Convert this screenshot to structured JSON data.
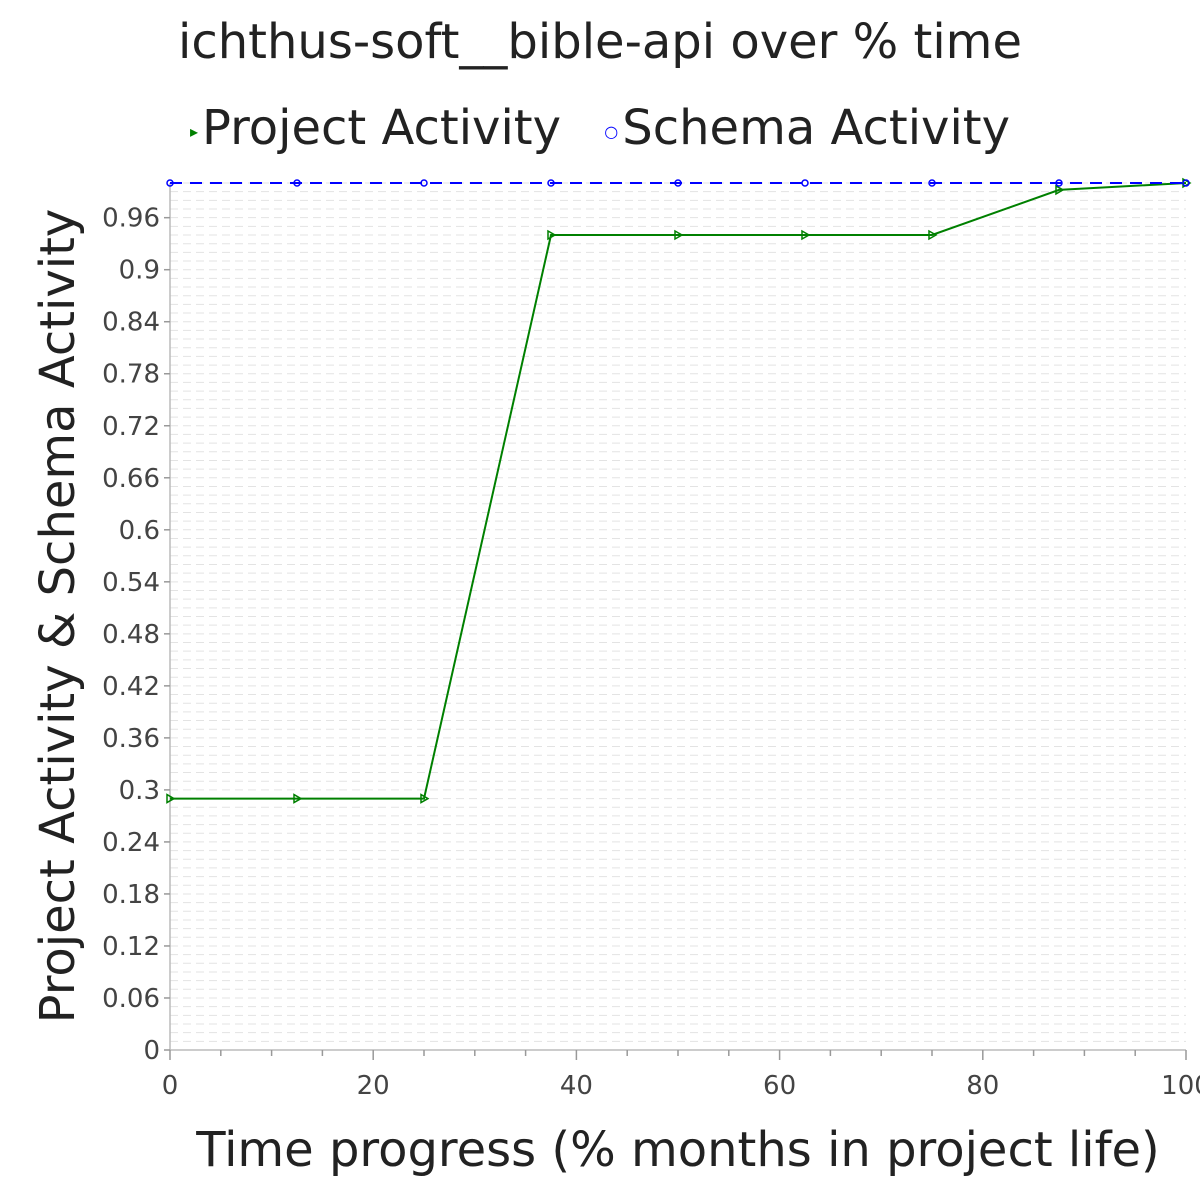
{
  "chart_data": {
    "type": "line",
    "title": "ichthus-soft__bible-api over % time",
    "xlabel": "Time progress (% months in project life)",
    "ylabel": "Project Activity & Schema Activity",
    "xlim": [
      0,
      100
    ],
    "ylim": [
      0,
      1.0
    ],
    "x_ticks": [
      0,
      20,
      40,
      60,
      80,
      100
    ],
    "y_ticks": [
      0,
      0.06,
      0.12,
      0.18,
      0.24,
      0.3,
      0.36,
      0.42,
      0.48,
      0.54,
      0.6,
      0.66,
      0.72,
      0.78,
      0.84,
      0.9,
      0.96
    ],
    "grid": true,
    "legend_position": "top",
    "series": [
      {
        "name": "Project Activity",
        "color": "#008000",
        "marker": "triangle-right",
        "dash": "solid",
        "x": [
          0,
          12.5,
          25,
          37.5,
          50,
          62.5,
          75,
          87.5,
          100
        ],
        "y": [
          0.29,
          0.29,
          0.29,
          0.94,
          0.94,
          0.94,
          0.94,
          0.992,
          1.0
        ]
      },
      {
        "name": "Schema Activity",
        "color": "#0000ff",
        "marker": "circle",
        "dash": "dashed",
        "x": [
          0,
          12.5,
          25,
          37.5,
          50,
          62.5,
          75,
          87.5,
          100
        ],
        "y": [
          1.0,
          1.0,
          1.0,
          1.0,
          1.0,
          1.0,
          1.0,
          1.0,
          1.0
        ]
      }
    ]
  }
}
